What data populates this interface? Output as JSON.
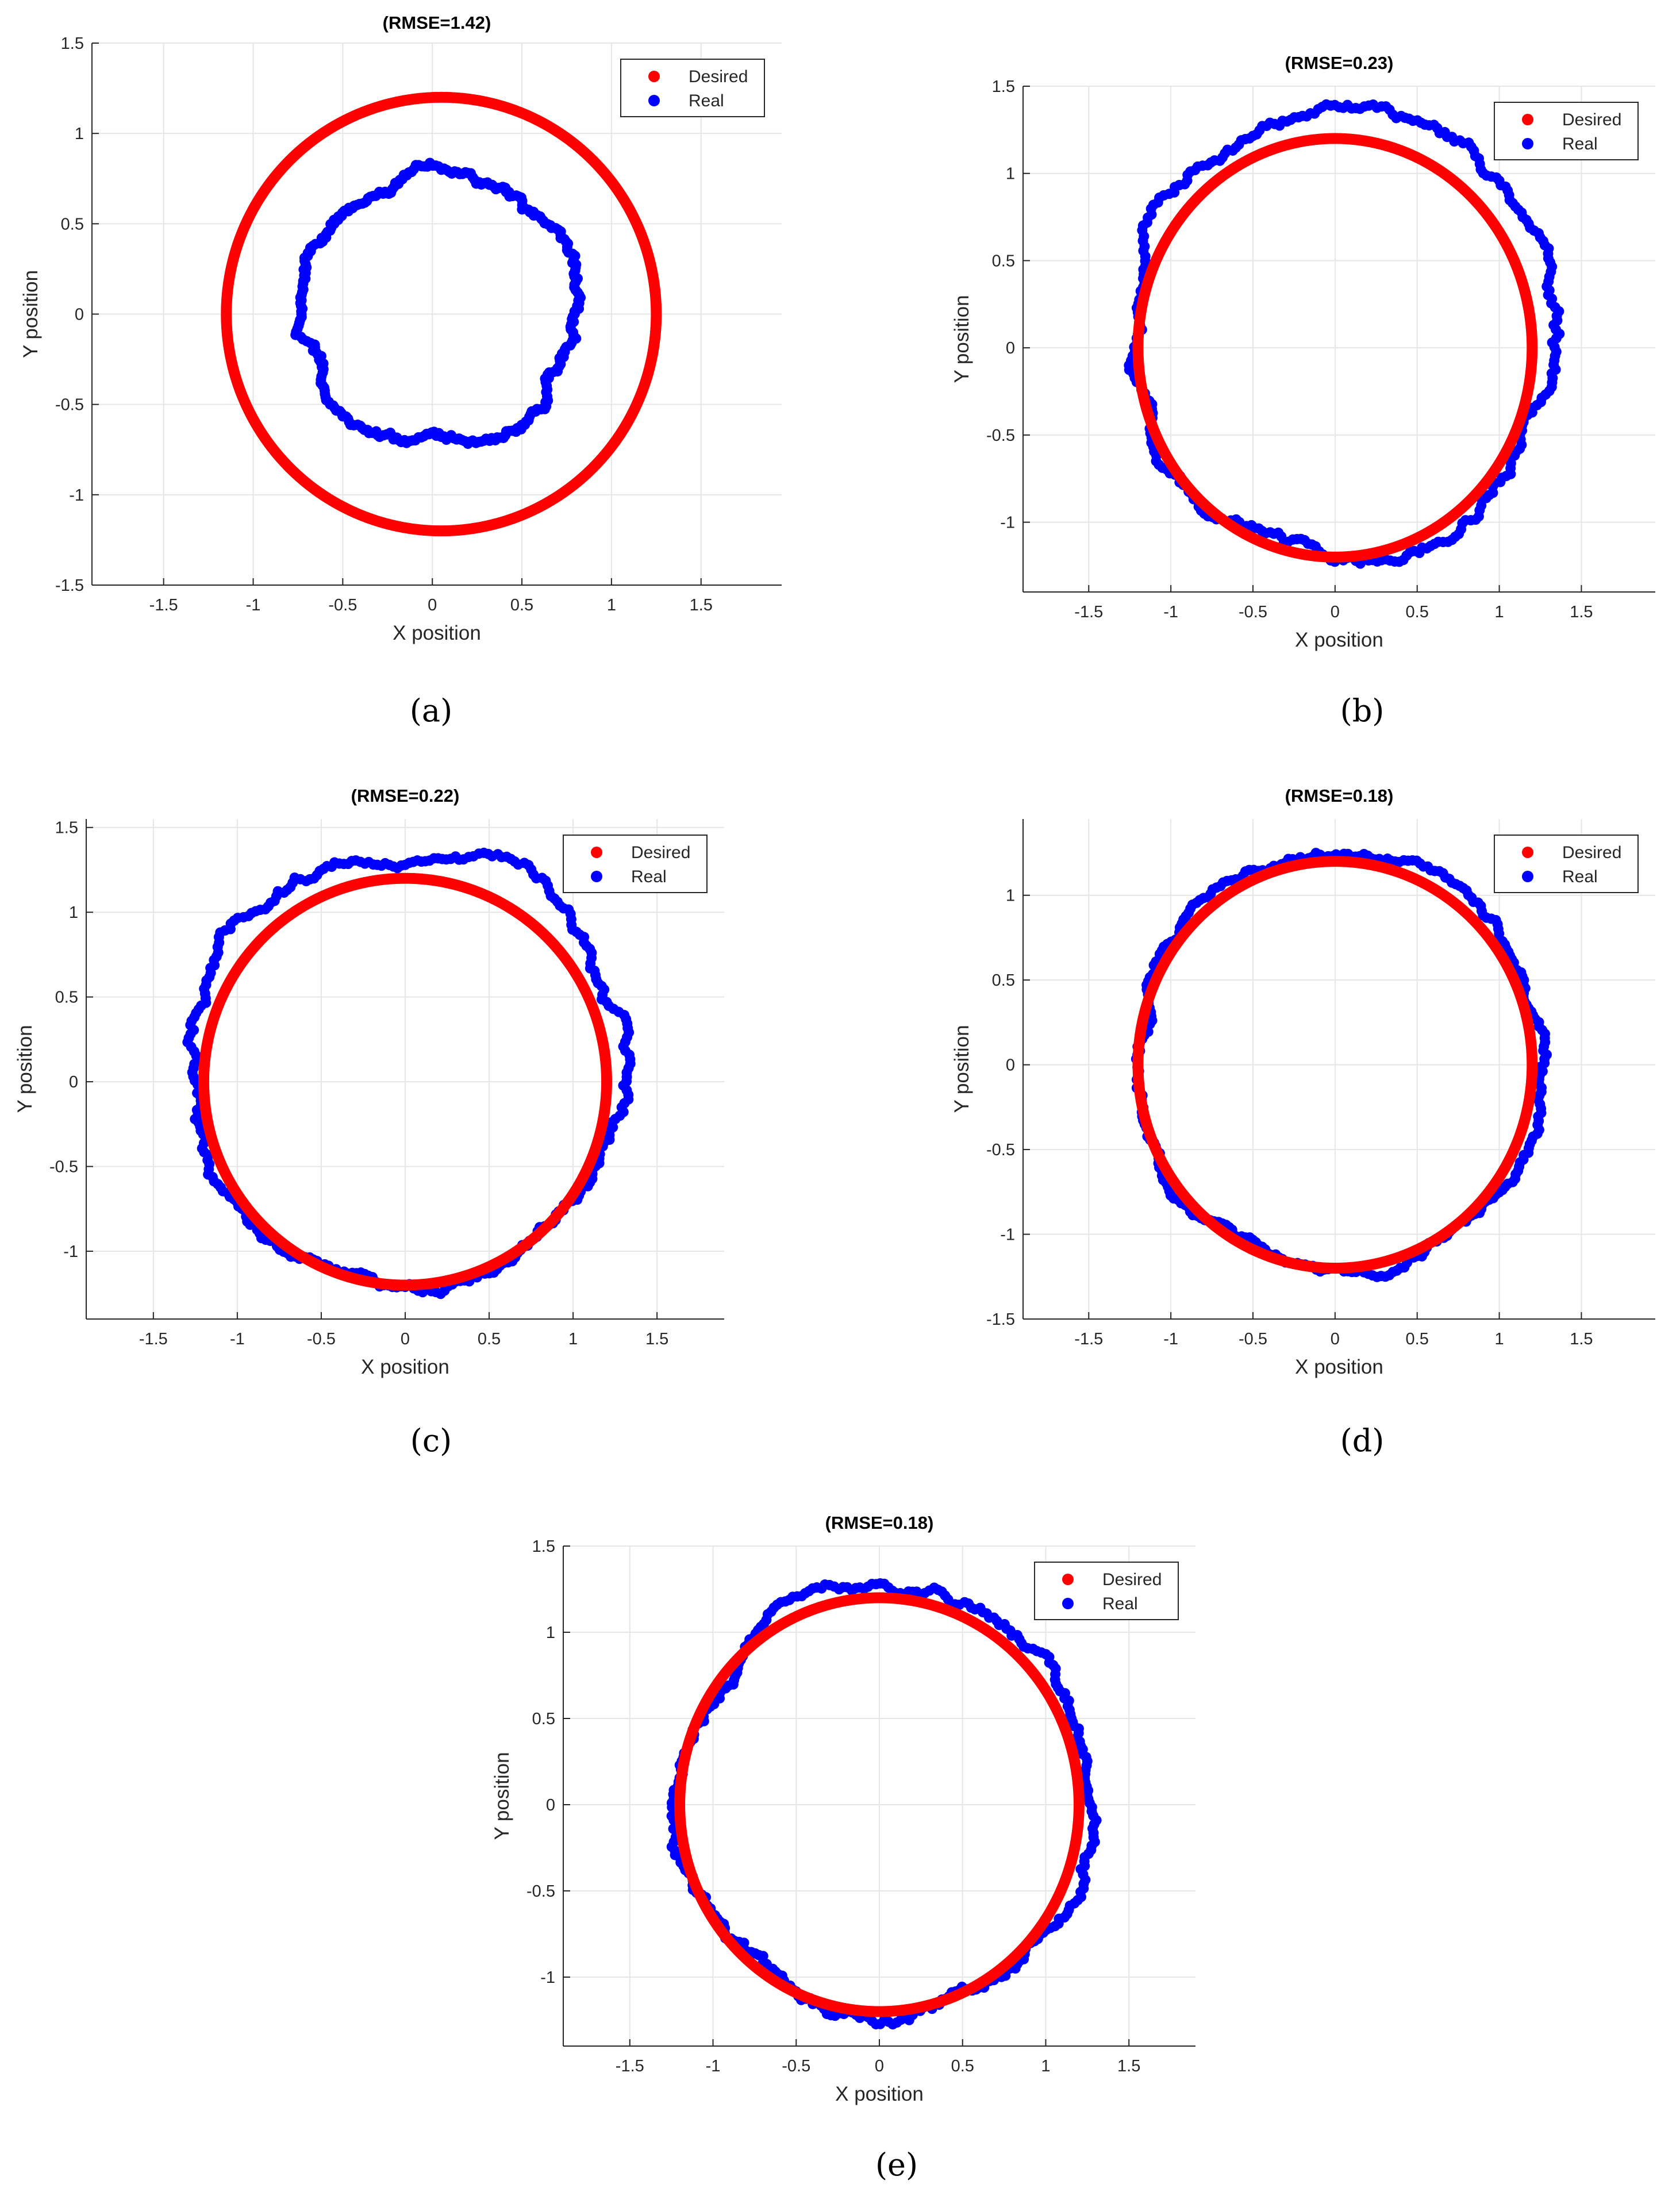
{
  "chart_data": [
    {
      "type": "scatter",
      "panel": "a",
      "caption": "(a)",
      "title": "(RMSE=1.42)",
      "xlabel": "X position",
      "ylabel": "Y position",
      "xlim": [
        -1.9,
        1.95
      ],
      "ylim": [
        -1.5,
        1.5
      ],
      "xticks": [
        -1.5,
        -1,
        -0.5,
        0,
        0.5,
        1,
        1.5
      ],
      "yticks": [
        -1.5,
        -1,
        -0.5,
        0,
        0.5,
        1,
        1.5
      ],
      "xtick_labels": [
        "-1.5",
        "-1",
        "-0.5",
        "0",
        "0.5",
        "1",
        "1.5"
      ],
      "ytick_labels": [
        "-1.5",
        "-1",
        "-0.5",
        "0",
        "0.5",
        "1",
        "1.5"
      ],
      "grid": true,
      "legend_position": "top-right",
      "series": [
        {
          "name": "Desired",
          "color": "#ff0000",
          "shape": "circle",
          "center": [
            0.05,
            0.0
          ],
          "radius": 1.2
        },
        {
          "name": "Real",
          "color": "#0000ff",
          "shape": "noisy-circle",
          "center": [
            0.05,
            0.03
          ],
          "radius": 0.76,
          "noise": 0.04
        }
      ]
    },
    {
      "type": "scatter",
      "panel": "b",
      "caption": "(b)",
      "title": "(RMSE=0.23)",
      "xlabel": "X position",
      "ylabel": "Y position",
      "xlim": [
        -1.9,
        1.95
      ],
      "ylim": [
        -1.4,
        1.5
      ],
      "xticks": [
        -1.5,
        -1,
        -0.5,
        0,
        0.5,
        1,
        1.5
      ],
      "yticks": [
        -1,
        -0.5,
        0,
        0.5,
        1,
        1.5
      ],
      "xtick_labels": [
        "-1.5",
        "-1",
        "-0.5",
        "0",
        "0.5",
        "1",
        "1.5"
      ],
      "ytick_labels": [
        "-1",
        "-0.5",
        "0",
        "0.5",
        "1",
        "1.5"
      ],
      "grid": true,
      "legend_position": "top-right",
      "series": [
        {
          "name": "Desired",
          "color": "#ff0000",
          "shape": "circle",
          "center": [
            0.0,
            0.0
          ],
          "radius": 1.2
        },
        {
          "name": "Real",
          "color": "#0000ff",
          "shape": "noisy-circle",
          "center": [
            0.05,
            0.08
          ],
          "radius": 1.28,
          "noise": 0.05
        }
      ]
    },
    {
      "type": "scatter",
      "panel": "c",
      "caption": "(c)",
      "title": "(RMSE=0.22)",
      "xlabel": "X position",
      "ylabel": "Y position",
      "xlim": [
        -1.9,
        1.9
      ],
      "ylim": [
        -1.4,
        1.55
      ],
      "xticks": [
        -1.5,
        -1,
        -0.5,
        0,
        0.5,
        1,
        1.5
      ],
      "yticks": [
        -1,
        -0.5,
        0,
        0.5,
        1,
        1.5
      ],
      "xtick_labels": [
        "-1.5",
        "-1",
        "-0.5",
        "0",
        "0.5",
        "1",
        "1.5"
      ],
      "ytick_labels": [
        "-1",
        "-0.5",
        "0",
        "0.5",
        "1",
        "1.5"
      ],
      "grid": true,
      "legend_position": "top-right",
      "series": [
        {
          "name": "Desired",
          "color": "#ff0000",
          "shape": "circle",
          "center": [
            0.0,
            0.0
          ],
          "radius": 1.2
        },
        {
          "name": "Real",
          "color": "#0000ff",
          "shape": "noisy-circle",
          "center": [
            0.0,
            0.08
          ],
          "radius": 1.29,
          "noise": 0.05
        }
      ]
    },
    {
      "type": "scatter",
      "panel": "d",
      "caption": "(d)",
      "title": "(RMSE=0.18)",
      "xlabel": "X position",
      "ylabel": "Y position",
      "xlim": [
        -1.9,
        1.95
      ],
      "ylim": [
        -1.5,
        1.45
      ],
      "xticks": [
        -1.5,
        -1,
        -0.5,
        0,
        0.5,
        1,
        1.5
      ],
      "yticks": [
        -1.5,
        -1,
        -0.5,
        0,
        0.5,
        1
      ],
      "xtick_labels": [
        "-1.5",
        "-1",
        "-0.5",
        "0",
        "0.5",
        "1",
        "1.5"
      ],
      "ytick_labels": [
        "-1.5",
        "-1",
        "-0.5",
        "0",
        "0.5",
        "1"
      ],
      "grid": true,
      "legend_position": "top-right",
      "series": [
        {
          "name": "Desired",
          "color": "#ff0000",
          "shape": "circle",
          "center": [
            0.0,
            0.0
          ],
          "radius": 1.2
        },
        {
          "name": "Real",
          "color": "#0000ff",
          "shape": "noisy-circle",
          "center": [
            0.03,
            0.01
          ],
          "radius": 1.23,
          "noise": 0.04
        }
      ]
    },
    {
      "type": "scatter",
      "panel": "e",
      "caption": "(e)",
      "title": "(RMSE=0.18)",
      "xlabel": "X position",
      "ylabel": "Y position",
      "xlim": [
        -1.9,
        1.9
      ],
      "ylim": [
        -1.4,
        1.5
      ],
      "xticks": [
        -1.5,
        -1,
        -0.5,
        0,
        0.5,
        1,
        1.5
      ],
      "yticks": [
        -1,
        -0.5,
        0,
        0.5,
        1,
        1.5
      ],
      "xtick_labels": [
        "-1.5",
        "-1",
        "-0.5",
        "0",
        "0.5",
        "1",
        "1.5"
      ],
      "ytick_labels": [
        "-1",
        "-0.5",
        "0",
        "0.5",
        "1",
        "1.5"
      ],
      "grid": true,
      "legend_position": "top-right",
      "series": [
        {
          "name": "Desired",
          "color": "#ff0000",
          "shape": "circle",
          "center": [
            0.0,
            0.0
          ],
          "radius": 1.2
        },
        {
          "name": "Real",
          "color": "#0000ff",
          "shape": "noisy-circle",
          "center": [
            0.03,
            0.01
          ],
          "radius": 1.24,
          "noise": 0.05
        }
      ]
    }
  ]
}
